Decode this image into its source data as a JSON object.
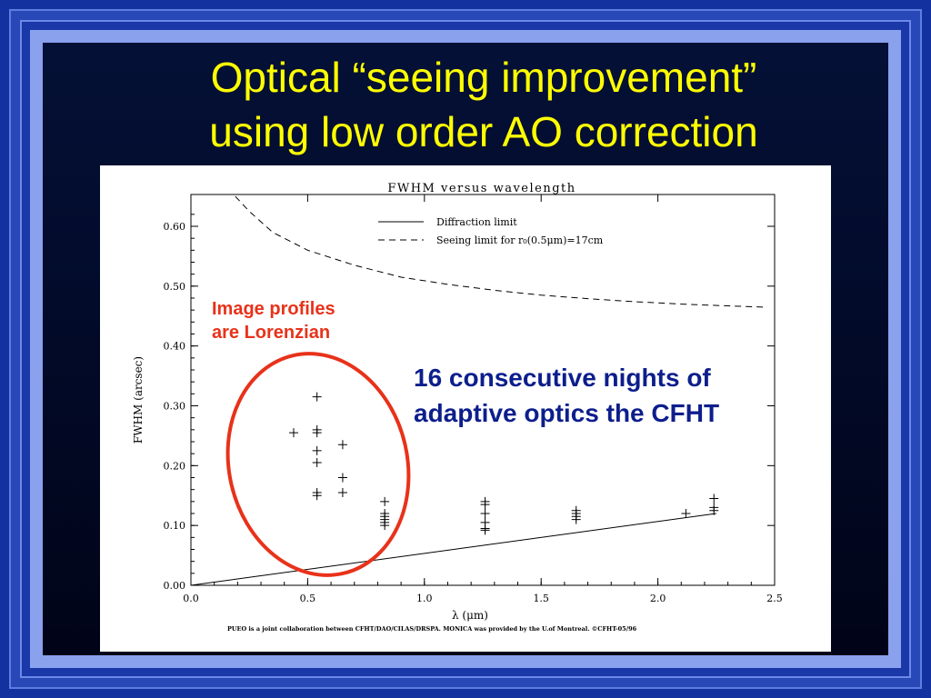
{
  "slide": {
    "title_line1": "Optical “seeing improvement”",
    "title_line2": "using low order AO correction",
    "colors": {
      "background": "#13329f",
      "title": "#ffff00",
      "annotation_red": "#e8321a",
      "annotation_blue": "#0d1e8c"
    }
  },
  "annotations": {
    "profiles_line1": "Image profiles",
    "profiles_line2": "are Lorenzian",
    "nights_line1": "16 consecutive nights of",
    "nights_line2": "adaptive optics the CFHT"
  },
  "chart_data": {
    "type": "scatter",
    "title": "FWHM versus wavelength",
    "xlabel": "λ (μm)",
    "ylabel": "FWHM (arcsec)",
    "xlim": [
      0.0,
      2.5
    ],
    "ylim": [
      0.0,
      0.6
    ],
    "x_ticks": [
      "0.0",
      "0.5",
      "1.0",
      "1.5",
      "2.0",
      "2.5"
    ],
    "y_ticks": [
      "0.00",
      "0.10",
      "0.20",
      "0.30",
      "0.40",
      "0.50",
      "0.60"
    ],
    "legend": {
      "placement": "top-right",
      "entries": [
        {
          "label": "Diffraction limit",
          "style": "solid"
        },
        {
          "label": "Seeing limit for r₀(0.5μm)=17cm",
          "style": "dashed"
        }
      ]
    },
    "footnote": "PUEO is a joint collaboration between CFHT/DAO/CILAS/DRSPA. MONICA was provided by the U.of Montreal. ©CFHT-05/96",
    "series": [
      {
        "name": "Diffraction limit",
        "kind": "line",
        "x": [
          0.0,
          2.25
        ],
        "y": [
          0.0,
          0.12
        ]
      },
      {
        "name": "Seeing limit for r₀(0.5μm)=17cm",
        "kind": "dashed-line",
        "x": [
          0.19,
          0.25,
          0.35,
          0.5,
          0.7,
          0.9,
          1.1,
          1.3,
          1.5,
          1.7,
          1.9,
          2.1,
          2.3,
          2.45
        ],
        "y": [
          0.65,
          0.625,
          0.59,
          0.56,
          0.535,
          0.515,
          0.503,
          0.493,
          0.485,
          0.479,
          0.474,
          0.47,
          0.467,
          0.465
        ]
      },
      {
        "name": "",
        "kind": "markers",
        "x": [
          0.44,
          0.54,
          0.54,
          0.54,
          0.54,
          0.54,
          0.54,
          0.54,
          0.65,
          0.65,
          0.65,
          0.83,
          0.83,
          0.83,
          0.83,
          0.83,
          0.83,
          1.26,
          1.26,
          1.26,
          1.26,
          1.26,
          1.26,
          1.65,
          1.65,
          1.65,
          1.65,
          2.12,
          2.24,
          2.24,
          2.24
        ],
        "y": [
          0.255,
          0.315,
          0.26,
          0.255,
          0.225,
          0.205,
          0.155,
          0.15,
          0.235,
          0.18,
          0.155,
          0.14,
          0.12,
          0.115,
          0.11,
          0.105,
          0.1,
          0.14,
          0.135,
          0.12,
          0.105,
          0.095,
          0.092,
          0.125,
          0.12,
          0.115,
          0.11,
          0.12,
          0.145,
          0.13,
          0.125
        ]
      }
    ]
  }
}
